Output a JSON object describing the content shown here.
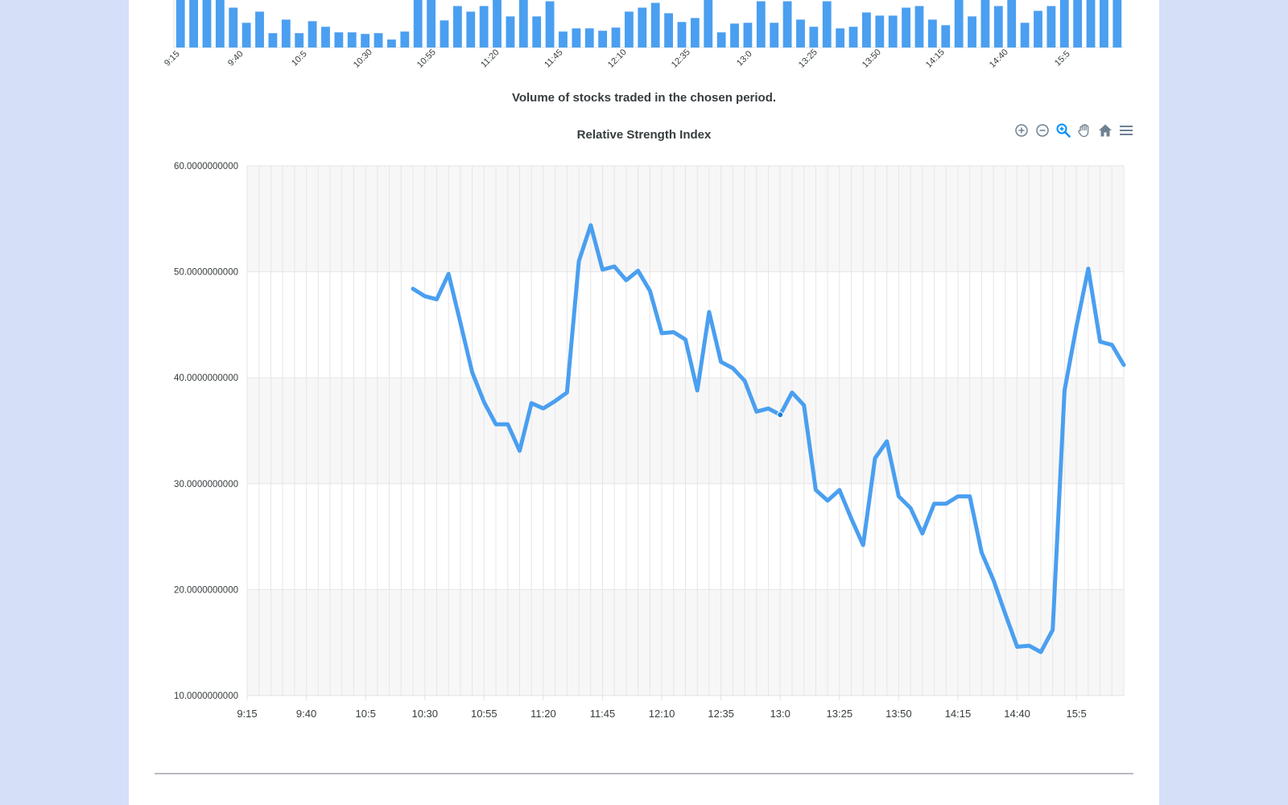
{
  "volume_chart": {
    "caption": "Volume of stocks traded in the chosen period.",
    "categories": [
      "9:15",
      "9:40",
      "10:5",
      "10:30",
      "10:55",
      "11:20",
      "11:45",
      "12:10",
      "12:35",
      "13:0",
      "13:25",
      "13:50",
      "14:15",
      "14:40",
      "15:5"
    ]
  },
  "toolbar": {
    "zoom_in": "zoom-in-icon",
    "zoom_out": "zoom-out-icon",
    "zoom_select": "magnifier-icon",
    "pan": "hand-icon",
    "reset": "home-icon",
    "menu": "menu-icon"
  },
  "colors": {
    "accent": "#4a9ff0",
    "grid": "#e6e6e6",
    "band": "#f7f7f7"
  },
  "chart_data": [
    {
      "type": "bar",
      "title": "",
      "caption": "Volume of stocks traded in the chosen period.",
      "x_tick_labels": [
        "9:15",
        "9:40",
        "10:5",
        "10:30",
        "10:55",
        "11:20",
        "11:45",
        "12:10",
        "12:35",
        "13:0",
        "13:25",
        "13:50",
        "14:15",
        "14:40",
        "15:5"
      ],
      "relative_values": [
        100,
        100,
        100,
        100,
        50,
        31,
        45,
        18,
        35,
        18,
        33,
        26,
        19,
        19,
        17,
        18,
        10,
        20,
        63,
        100,
        34,
        52,
        45,
        52,
        62,
        39,
        60,
        39,
        58,
        20,
        24,
        24,
        21,
        25,
        45,
        50,
        56,
        43,
        32,
        37,
        100,
        19,
        30,
        31,
        58,
        31,
        58,
        35,
        26,
        58,
        24,
        26,
        44,
        40,
        40,
        50,
        52,
        35,
        28,
        100,
        39,
        100,
        52,
        60,
        31,
        46,
        52,
        100,
        100,
        100,
        100,
        100
      ]
    },
    {
      "type": "line",
      "title": "Relative Strength Index",
      "xlabel": "",
      "ylabel": "",
      "ylim": [
        10,
        60
      ],
      "y_ticks": [
        "10.0000000000",
        "20.0000000000",
        "30.0000000000",
        "40.0000000000",
        "50.0000000000",
        "60.0000000000"
      ],
      "x_tick_labels": [
        "9:15",
        "9:40",
        "10:5",
        "10:30",
        "10:55",
        "11:20",
        "11:45",
        "12:10",
        "12:35",
        "13:0",
        "13:25",
        "13:50",
        "14:15",
        "14:40",
        "15:5"
      ],
      "x_tick_step": 5,
      "x_start": 0,
      "x_end": 74,
      "grid": true,
      "series": [
        {
          "name": "",
          "x": [
            14,
            15,
            16,
            17,
            18,
            19,
            20,
            21,
            22,
            23,
            24,
            25,
            26,
            27,
            28,
            29,
            30,
            31,
            32,
            33,
            34,
            35,
            36,
            37,
            38,
            39,
            40,
            41,
            42,
            43,
            44,
            45,
            46,
            47,
            48,
            49,
            50,
            51,
            52,
            53,
            54,
            55,
            56,
            57,
            58,
            59,
            60,
            61,
            62,
            63,
            64,
            65,
            66,
            67,
            68,
            69,
            70,
            71,
            72,
            73,
            74
          ],
          "y": [
            48.4,
            47.7,
            47.4,
            49.8,
            45.2,
            40.5,
            37.7,
            35.6,
            35.6,
            33.1,
            37.6,
            37.1,
            37.8,
            38.6,
            51.0,
            54.4,
            50.2,
            50.5,
            49.2,
            50.1,
            48.2,
            44.2,
            44.3,
            43.6,
            38.8,
            46.2,
            41.5,
            40.9,
            39.7,
            36.8,
            37.1,
            36.5,
            38.6,
            37.4,
            29.4,
            28.4,
            29.4,
            26.7,
            24.2,
            32.4,
            34.0,
            28.8,
            27.7,
            25.3,
            28.1,
            28.1,
            28.8,
            28.8,
            23.5,
            20.9,
            17.7,
            14.6,
            14.7,
            14.1,
            16.2,
            38.8,
            44.8,
            50.3,
            43.4,
            43.1,
            41.2
          ]
        }
      ],
      "marker": {
        "x": 45,
        "y": 36.5
      }
    }
  ]
}
